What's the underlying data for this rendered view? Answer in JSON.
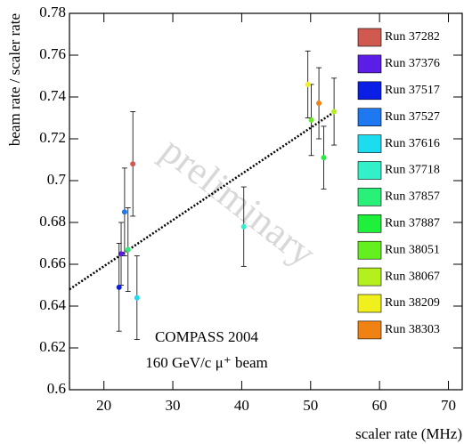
{
  "chart_data": {
    "type": "scatter",
    "xlabel": "scaler rate (MHz)",
    "ylabel": "beam rate / scaler rate",
    "annotations": [
      "preliminary",
      "COMPASS 2004",
      "160 GeV/c  μ⁺ beam"
    ],
    "xlim": [
      15,
      72
    ],
    "xticks": [
      20,
      30,
      40,
      50,
      60,
      70
    ],
    "ylim": [
      0.6,
      0.78
    ],
    "yticks": [
      0.6,
      0.62,
      0.64,
      0.66,
      0.68,
      0.7,
      0.72,
      0.74,
      0.76,
      0.78
    ],
    "legend": "right",
    "fit": {
      "x": [
        15,
        53.5
      ],
      "values": [
        0.648,
        0.733
      ],
      "color": "#000000"
    },
    "series": [
      {
        "name": "Run 37282",
        "color": "#d05a50",
        "x": [
          24.2
        ],
        "values": [
          0.708
        ],
        "errors": [
          0.025
        ]
      },
      {
        "name": "Run 37376",
        "color": "#5a1ee6",
        "x": [
          22.5
        ],
        "values": [
          0.665
        ],
        "errors": [
          0.015
        ]
      },
      {
        "name": "Run 37517",
        "color": "#0a1ee6",
        "x": [
          22.2
        ],
        "values": [
          0.649
        ],
        "errors": [
          0.021
        ]
      },
      {
        "name": "Run 37527",
        "color": "#1e78f0",
        "x": [
          23.0
        ],
        "values": [
          0.685
        ],
        "errors": [
          0.021
        ]
      },
      {
        "name": "Run 37616",
        "color": "#1edcf0",
        "x": [
          24.8
        ],
        "values": [
          0.644
        ],
        "errors": [
          0.02
        ]
      },
      {
        "name": "Run 37718",
        "color": "#32f0c8",
        "x": [
          40.3
        ],
        "values": [
          0.678
        ],
        "errors": [
          0.019
        ]
      },
      {
        "name": "Run 37857",
        "color": "#28f078",
        "x": [
          23.5
        ],
        "values": [
          0.667
        ],
        "errors": [
          0.02
        ]
      },
      {
        "name": "Run 37887",
        "color": "#1ef03c",
        "x": [
          51.9
        ],
        "values": [
          0.711
        ],
        "errors": [
          0.015
        ]
      },
      {
        "name": "Run 38051",
        "color": "#64f01e",
        "x": [
          50.1
        ],
        "values": [
          0.729
        ],
        "errors": [
          0.017
        ]
      },
      {
        "name": "Run 38067",
        "color": "#b4f01e",
        "x": [
          53.4
        ],
        "values": [
          0.733
        ],
        "errors": [
          0.016
        ]
      },
      {
        "name": "Run 38209",
        "color": "#f0f01e",
        "x": [
          49.6
        ],
        "values": [
          0.746
        ],
        "errors": [
          0.016
        ]
      },
      {
        "name": "Run 38303",
        "color": "#f08214",
        "x": [
          51.2
        ],
        "values": [
          0.737
        ],
        "errors": [
          0.017
        ]
      }
    ]
  }
}
